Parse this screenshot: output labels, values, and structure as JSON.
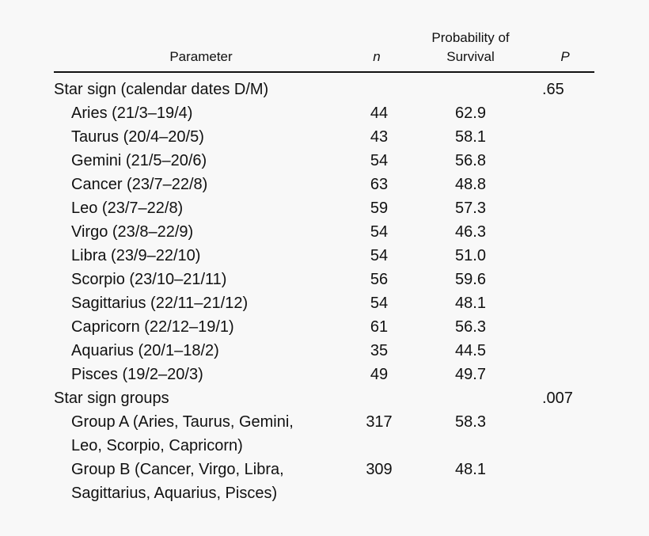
{
  "header": {
    "parameter": "Parameter",
    "n": "n",
    "probability_line1": "Probability of",
    "probability_line2": "Survival",
    "p": "P"
  },
  "sections": [
    {
      "title": "Star sign (calendar dates D/M)",
      "p": ".65",
      "rows": [
        {
          "parameter": "Aries (21/3–19/4)",
          "n": "44",
          "survival": "62.9"
        },
        {
          "parameter": "Taurus (20/4–20/5)",
          "n": "43",
          "survival": "58.1"
        },
        {
          "parameter": "Gemini (21/5–20/6)",
          "n": "54",
          "survival": "56.8"
        },
        {
          "parameter": "Cancer (23/7–22/8)",
          "n": "63",
          "survival": "48.8"
        },
        {
          "parameter": "Leo (23/7–22/8)",
          "n": "59",
          "survival": "57.3"
        },
        {
          "parameter": "Virgo (23/8–22/9)",
          "n": "54",
          "survival": "46.3"
        },
        {
          "parameter": "Libra (23/9–22/10)",
          "n": "54",
          "survival": "51.0"
        },
        {
          "parameter": "Scorpio (23/10–21/11)",
          "n": "56",
          "survival": "59.6"
        },
        {
          "parameter": "Sagittarius (22/11–21/12)",
          "n": "54",
          "survival": "48.1"
        },
        {
          "parameter": "Capricorn (22/12–19/1)",
          "n": "61",
          "survival": "56.3"
        },
        {
          "parameter": "Aquarius (20/1–18/2)",
          "n": "35",
          "survival": "44.5"
        },
        {
          "parameter": "Pisces (19/2–20/3)",
          "n": "49",
          "survival": "49.7"
        }
      ]
    },
    {
      "title": "Star sign groups",
      "p": ".007",
      "rows": [
        {
          "parameter_line1": "Group A (Aries, Taurus, Gemini,",
          "parameter_line2": "Leo, Scorpio, Capricorn)",
          "n": "317",
          "survival": "58.3"
        },
        {
          "parameter_line1": "Group B (Cancer, Virgo, Libra,",
          "parameter_line2": "Sagittarius, Aquarius, Pisces)",
          "n": "309",
          "survival": "48.1"
        }
      ]
    }
  ]
}
